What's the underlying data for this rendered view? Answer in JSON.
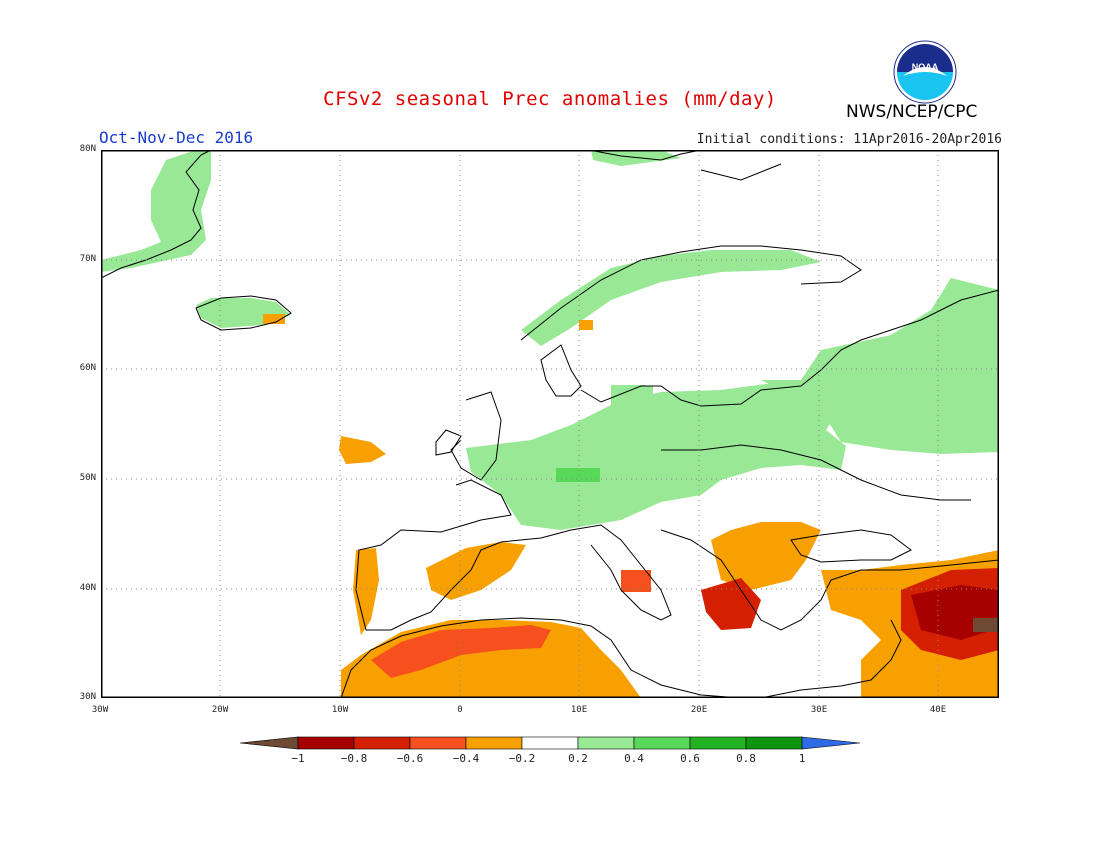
{
  "title": "CFSv2 seasonal Prec anomalies (mm/day)",
  "agency": "NWS/NCEP/CPC",
  "season": "Oct-Nov-Dec 2016",
  "initial_conditions": "Initial conditions: 11Apr2016-20Apr2016",
  "logo_text": "NOAA",
  "lat_labels": [
    "80N",
    "70N",
    "60N",
    "50N",
    "40N",
    "30N"
  ],
  "lon_labels": [
    "30W",
    "20W",
    "10W",
    "0",
    "10E",
    "20E",
    "30E",
    "40E"
  ],
  "legend": {
    "labels": [
      "−1",
      "−0.8",
      "−0.6",
      "−0.4",
      "−0.2",
      "0.2",
      "0.4",
      "0.6",
      "0.8",
      "1"
    ],
    "colors": [
      "#6e4a35",
      "#a70000",
      "#d42000",
      "#f5501e",
      "#f7a000",
      "#ffffff",
      "#98e896",
      "#58d858",
      "#22b322",
      "#0f960f",
      "#2f6be8"
    ]
  },
  "map_data": {
    "extent": {
      "lon": [
        -30,
        45
      ],
      "lat": [
        30,
        80
      ]
    },
    "anomaly_regions": [
      {
        "area": "Greenland east coast",
        "class": "0.2 to 0.4"
      },
      {
        "area": "Northern Scandinavia coast",
        "class": "0.2 to 0.4"
      },
      {
        "area": "Central Europe / Poland",
        "class": "0.2 to 0.4"
      },
      {
        "area": "Western Russia",
        "class": "0.2 to 0.4"
      },
      {
        "area": "Iberia / North Africa",
        "class": "-0.2 to -0.6"
      },
      {
        "area": "Balkans / Greece",
        "class": "-0.2 to -0.8"
      },
      {
        "area": "Turkey / Middle East",
        "class": "-0.4 to -1"
      }
    ]
  }
}
